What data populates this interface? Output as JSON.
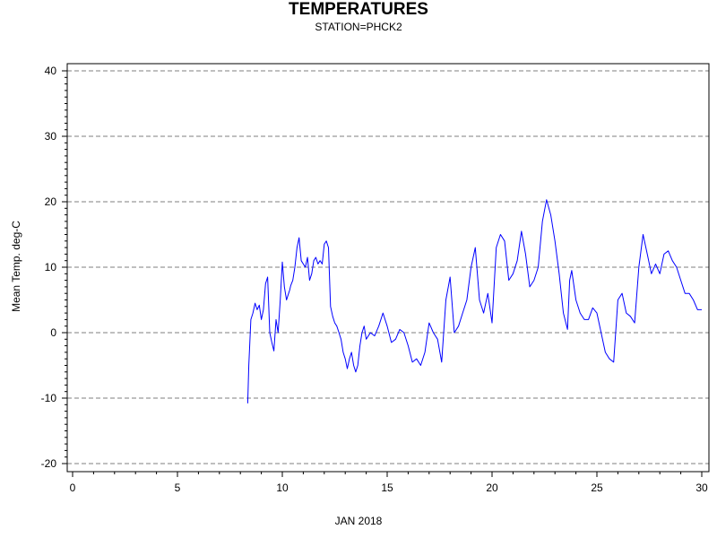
{
  "chart_data": {
    "type": "line",
    "title": "TEMPERATURES",
    "subtitle": "STATION=PHCK2",
    "xlabel": "JAN 2018",
    "ylabel": "Mean Temp. deg-C",
    "xlim": [
      0,
      30
    ],
    "ylim": [
      -20,
      40
    ],
    "x_ticks": [
      0,
      5,
      10,
      15,
      20,
      25,
      30
    ],
    "y_ticks": [
      -20,
      -10,
      0,
      10,
      20,
      30,
      40
    ],
    "x_tick_labels": [
      "0",
      "5",
      "10",
      "15",
      "20",
      "25",
      "30"
    ],
    "y_tick_labels": [
      "-20",
      "-10",
      "0",
      "10",
      "20",
      "30",
      "40"
    ],
    "grid": "horizontal dashed",
    "series": [
      {
        "color": "#0000ff",
        "x": [
          8.35,
          8.4,
          8.5,
          8.6,
          8.7,
          8.8,
          8.9,
          9.0,
          9.1,
          9.2,
          9.3,
          9.4,
          9.5,
          9.6,
          9.7,
          9.8,
          9.9,
          10.0,
          10.1,
          10.2,
          10.3,
          10.35,
          10.4,
          10.5,
          10.6,
          10.7,
          10.8,
          10.9,
          11.0,
          11.1,
          11.2,
          11.3,
          11.4,
          11.5,
          11.6,
          11.7,
          11.8,
          11.9,
          12.0,
          12.1,
          12.2,
          12.3,
          12.4,
          12.5,
          12.6,
          12.7,
          12.8,
          12.9,
          13.0,
          13.1,
          13.2,
          13.3,
          13.4,
          13.5,
          13.6,
          13.7,
          13.8,
          13.9,
          14.0,
          14.2,
          14.4,
          14.6,
          14.8,
          15.0,
          15.2,
          15.4,
          15.6,
          15.8,
          16.0,
          16.2,
          16.4,
          16.6,
          16.8,
          17.0,
          17.2,
          17.4,
          17.6,
          17.8,
          18.0,
          18.2,
          18.4,
          18.6,
          18.8,
          19.0,
          19.2,
          19.4,
          19.6,
          19.8,
          20.0,
          20.2,
          20.4,
          20.6,
          20.8,
          21.0,
          21.2,
          21.4,
          21.6,
          21.8,
          22.0,
          22.2,
          22.4,
          22.6,
          22.8,
          23.0,
          23.2,
          23.4,
          23.6,
          23.7,
          23.8,
          24.0,
          24.2,
          24.4,
          24.6,
          24.8,
          25.0,
          25.2,
          25.4,
          25.6,
          25.8,
          26.0,
          26.2,
          26.4,
          26.6,
          26.8,
          27.0,
          27.2,
          27.4,
          27.6,
          27.8,
          28.0,
          28.2,
          28.4,
          28.6,
          28.8,
          29.0,
          29.2,
          29.4,
          29.6,
          29.8,
          30.0
        ],
        "values": [
          -10.8,
          -5,
          2,
          3,
          4.5,
          3.5,
          4.2,
          2,
          3.5,
          7.5,
          8.5,
          0,
          -1.5,
          -2.8,
          2,
          0,
          5,
          10.8,
          7,
          5,
          6,
          6.5,
          7.2,
          8,
          10,
          13,
          14.5,
          11,
          10.5,
          10,
          11.5,
          8,
          9,
          11,
          11.5,
          10.5,
          11,
          10.5,
          13.5,
          14,
          13,
          4,
          2.5,
          1.5,
          1,
          0,
          -1,
          -3,
          -4,
          -5.5,
          -4,
          -3,
          -5,
          -6,
          -5,
          -2,
          0,
          1,
          -1,
          0,
          -0.5,
          1,
          3,
          1,
          -1.5,
          -1,
          0.5,
          0,
          -2,
          -4.5,
          -4,
          -5,
          -3,
          1.5,
          0,
          -1,
          -4.5,
          5,
          8.5,
          0,
          1,
          3,
          5,
          10,
          13,
          5,
          3,
          6,
          1.5,
          13,
          15,
          14,
          8,
          9,
          11,
          15.5,
          12,
          7,
          8,
          10,
          17,
          20.3,
          18,
          14,
          9,
          3,
          0.5,
          8,
          9.5,
          5,
          3,
          2,
          2,
          3.8,
          3,
          0,
          -3,
          -4,
          -4.5,
          5,
          6,
          3,
          2.5,
          1.5,
          10,
          15,
          12,
          9,
          10.5,
          9,
          12,
          12.5,
          11,
          10,
          8,
          6,
          6,
          5,
          3.5,
          3.5
        ]
      }
    ]
  }
}
